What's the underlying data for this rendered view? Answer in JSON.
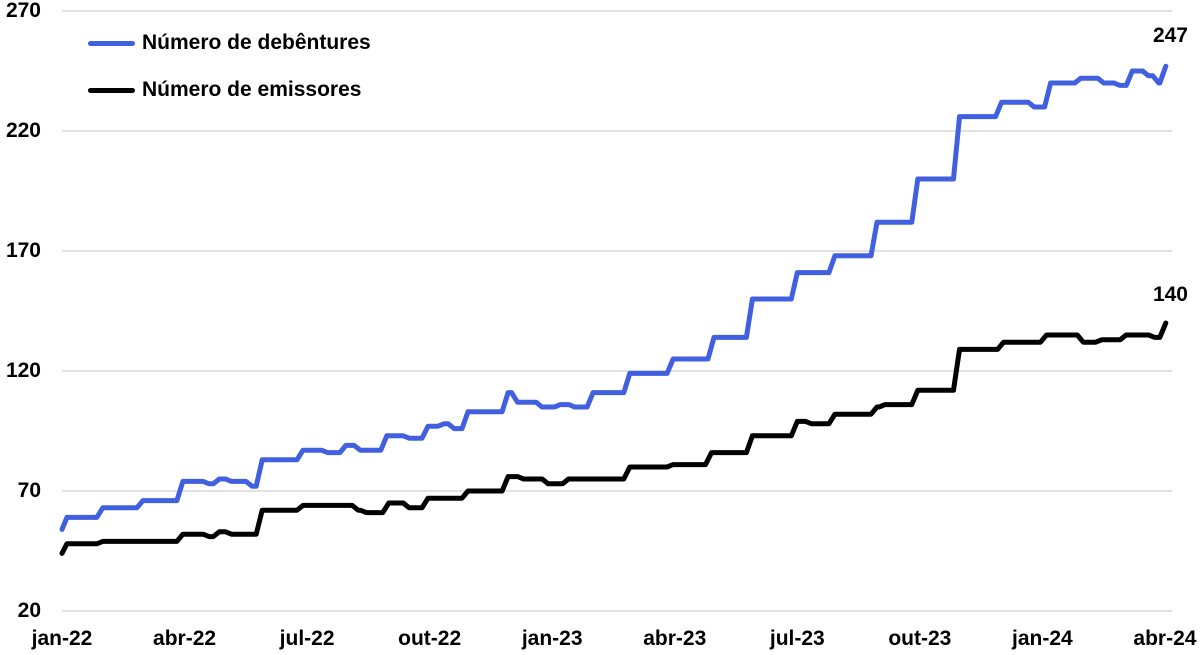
{
  "colors": {
    "debentures_line": "#4160E0",
    "emissores_line": "#000000",
    "grid": "#D9D9D9",
    "text": "#000000",
    "background": "#FFFFFF"
  },
  "chart_data": {
    "type": "line",
    "style": "stepped line chart, weekly observations jan-2022 to abr-2024",
    "grid": "horizontal gridlines on",
    "legend_position": "top-left inside plot",
    "y_axis": {
      "min": 20,
      "max": 270,
      "ticks": [
        20,
        70,
        120,
        170,
        220,
        270
      ]
    },
    "x_axis": {
      "unit": "months since jan-22",
      "ticks": [
        {
          "m": 0,
          "label": "jan-22"
        },
        {
          "m": 3,
          "label": "abr-22"
        },
        {
          "m": 6,
          "label": "jul-22"
        },
        {
          "m": 9,
          "label": "out-22"
        },
        {
          "m": 12,
          "label": "jan-23"
        },
        {
          "m": 15,
          "label": "abr-23"
        },
        {
          "m": 18,
          "label": "jul-23"
        },
        {
          "m": 21,
          "label": "out-23"
        },
        {
          "m": 24,
          "label": "jan-24"
        },
        {
          "m": 27,
          "label": "abr-24"
        }
      ]
    },
    "series": [
      {
        "id": "debentures",
        "name": "Número de debêntures",
        "color": "#4160E0",
        "end_label": "247",
        "points": [
          [
            0,
            54
          ],
          [
            0.12,
            59
          ],
          [
            1,
            63
          ],
          [
            1.98,
            66
          ],
          [
            2.96,
            74
          ],
          [
            3.6,
            73
          ],
          [
            3.85,
            75
          ],
          [
            4.15,
            74
          ],
          [
            4.65,
            72
          ],
          [
            4.9,
            83
          ],
          [
            5.9,
            87
          ],
          [
            6.5,
            86
          ],
          [
            6.95,
            89
          ],
          [
            7.3,
            87
          ],
          [
            7.95,
            93
          ],
          [
            8.5,
            92
          ],
          [
            8.96,
            97
          ],
          [
            9.35,
            98
          ],
          [
            9.6,
            96
          ],
          [
            9.94,
            103
          ],
          [
            10.92,
            111
          ],
          [
            11.15,
            107
          ],
          [
            11.75,
            105
          ],
          [
            12.2,
            106
          ],
          [
            12.55,
            105
          ],
          [
            13,
            111
          ],
          [
            13.9,
            119
          ],
          [
            14.96,
            125
          ],
          [
            15.96,
            134
          ],
          [
            16.9,
            150
          ],
          [
            18,
            161
          ],
          [
            18.92,
            168
          ],
          [
            19.95,
            182
          ],
          [
            20.95,
            200
          ],
          [
            21.97,
            226
          ],
          [
            23,
            232
          ],
          [
            23.8,
            230
          ],
          [
            24.2,
            240
          ],
          [
            24.94,
            242
          ],
          [
            25.5,
            240
          ],
          [
            25.9,
            239
          ],
          [
            26.2,
            245
          ],
          [
            26.6,
            243
          ],
          [
            26.85,
            240
          ],
          [
            27.02,
            247
          ]
        ]
      },
      {
        "id": "emissores",
        "name": "Número de emissores",
        "color": "#000000",
        "end_label": "140",
        "points": [
          [
            0,
            44
          ],
          [
            0.12,
            48
          ],
          [
            1,
            49
          ],
          [
            2.96,
            52
          ],
          [
            3.6,
            51
          ],
          [
            3.85,
            53
          ],
          [
            4.15,
            52
          ],
          [
            4.9,
            62
          ],
          [
            5.9,
            64
          ],
          [
            7.25,
            62
          ],
          [
            7.45,
            61
          ],
          [
            8,
            65
          ],
          [
            8.5,
            63
          ],
          [
            8.96,
            67
          ],
          [
            9.94,
            70
          ],
          [
            10.92,
            76
          ],
          [
            11.3,
            75
          ],
          [
            11.9,
            73
          ],
          [
            12.4,
            75
          ],
          [
            13.9,
            80
          ],
          [
            14.96,
            81
          ],
          [
            15.9,
            86
          ],
          [
            16.9,
            93
          ],
          [
            18,
            99
          ],
          [
            18.35,
            98
          ],
          [
            18.92,
            102
          ],
          [
            19.95,
            105
          ],
          [
            20.15,
            106
          ],
          [
            20.95,
            112
          ],
          [
            21.97,
            129
          ],
          [
            23.05,
            132
          ],
          [
            24.1,
            135
          ],
          [
            25.0,
            132
          ],
          [
            25.45,
            133
          ],
          [
            26.05,
            135
          ],
          [
            26.75,
            134
          ],
          [
            27.02,
            140
          ]
        ]
      }
    ]
  }
}
